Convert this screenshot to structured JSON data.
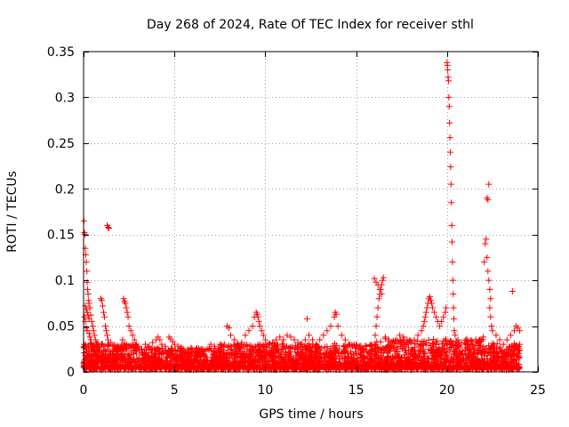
{
  "chart_data": {
    "type": "scatter",
    "title": "Day 268 of 2024, Rate Of TEC Index for receiver sthl",
    "xlabel": "GPS time / hours",
    "ylabel": "ROTI / TECUs",
    "xlim": [
      0,
      25
    ],
    "ylim": [
      0,
      0.35
    ],
    "grid": true,
    "marker": "plus",
    "xticks": [
      {
        "value": 0,
        "label": "0"
      },
      {
        "value": 5,
        "label": "5"
      },
      {
        "value": 10,
        "label": "10"
      },
      {
        "value": 15,
        "label": "15"
      },
      {
        "value": 20,
        "label": "20"
      },
      {
        "value": 25,
        "label": "25"
      }
    ],
    "yticks": [
      {
        "value": 0,
        "label": "0"
      },
      {
        "value": 0.05,
        "label": "0.05"
      },
      {
        "value": 0.1,
        "label": "0.1"
      },
      {
        "value": 0.15,
        "label": "0.15"
      },
      {
        "value": 0.2,
        "label": "0.2"
      },
      {
        "value": 0.25,
        "label": "0.25"
      },
      {
        "value": 0.3,
        "label": "0.3"
      },
      {
        "value": 0.35,
        "label": "0.35"
      }
    ],
    "series": [
      {
        "name": "ROTI",
        "color": "#ff0000",
        "points": [
          [
            0.02,
            0.165
          ],
          [
            0.05,
            0.152
          ],
          [
            0.08,
            0.15
          ],
          [
            0.1,
            0.135
          ],
          [
            0.12,
            0.128
          ],
          [
            0.15,
            0.12
          ],
          [
            0.18,
            0.11
          ],
          [
            0.2,
            0.098
          ],
          [
            0.22,
            0.09
          ],
          [
            0.25,
            0.085
          ],
          [
            0.28,
            0.078
          ],
          [
            0.3,
            0.075
          ],
          [
            0.35,
            0.07
          ],
          [
            0.4,
            0.062
          ],
          [
            0.45,
            0.055
          ],
          [
            0.5,
            0.05
          ],
          [
            0.55,
            0.045
          ],
          [
            0.6,
            0.04
          ],
          [
            0.65,
            0.035
          ],
          [
            0.7,
            0.032
          ],
          [
            0.75,
            0.03
          ],
          [
            0.8,
            0.028
          ],
          [
            0.85,
            0.025
          ],
          [
            0.05,
            0.06
          ],
          [
            0.1,
            0.055
          ],
          [
            0.15,
            0.048
          ],
          [
            0.2,
            0.045
          ],
          [
            0.3,
            0.042
          ],
          [
            0.35,
            0.038
          ],
          [
            0.4,
            0.035
          ],
          [
            0.45,
            0.03
          ],
          [
            0.5,
            0.028
          ],
          [
            0.55,
            0.025
          ],
          [
            0.6,
            0.022
          ],
          [
            0.65,
            0.02
          ],
          [
            0.7,
            0.018
          ],
          [
            0.03,
            0.03
          ],
          [
            0.07,
            0.028
          ],
          [
            0.12,
            0.025
          ],
          [
            0.18,
            0.022
          ],
          [
            0.25,
            0.02
          ],
          [
            0.33,
            0.018
          ],
          [
            0.42,
            0.016
          ],
          [
            0.5,
            0.014
          ],
          [
            0.1,
            0.072
          ],
          [
            0.15,
            0.068
          ],
          [
            0.2,
            0.065
          ],
          [
            0.25,
            0.062
          ],
          [
            0.3,
            0.058
          ],
          [
            0.95,
            0.08
          ],
          [
            1.0,
            0.078
          ],
          [
            1.05,
            0.072
          ],
          [
            1.1,
            0.065
          ],
          [
            1.15,
            0.06
          ],
          [
            1.2,
            0.05
          ],
          [
            1.25,
            0.045
          ],
          [
            1.3,
            0.04
          ],
          [
            1.35,
            0.035
          ],
          [
            1.4,
            0.03
          ],
          [
            1.3,
            0.16
          ],
          [
            1.35,
            0.158
          ],
          [
            1.4,
            0.157
          ],
          [
            1.5,
            0.032
          ],
          [
            1.6,
            0.028
          ],
          [
            1.7,
            0.025
          ],
          [
            1.8,
            0.022
          ],
          [
            1.9,
            0.02
          ],
          [
            2.0,
            0.025
          ],
          [
            2.1,
            0.03
          ],
          [
            2.15,
            0.035
          ],
          [
            2.2,
            0.08
          ],
          [
            2.25,
            0.077
          ],
          [
            2.3,
            0.075
          ],
          [
            2.35,
            0.07
          ],
          [
            2.4,
            0.065
          ],
          [
            2.45,
            0.06
          ],
          [
            2.5,
            0.05
          ],
          [
            2.6,
            0.045
          ],
          [
            2.7,
            0.04
          ],
          [
            2.8,
            0.035
          ],
          [
            2.9,
            0.03
          ],
          [
            3.0,
            0.028
          ],
          [
            3.2,
            0.025
          ],
          [
            3.4,
            0.03
          ],
          [
            3.6,
            0.028
          ],
          [
            3.8,
            0.032
          ],
          [
            4.0,
            0.035
          ],
          [
            4.1,
            0.038
          ],
          [
            4.2,
            0.035
          ],
          [
            4.3,
            0.03
          ],
          [
            4.5,
            0.028
          ],
          [
            4.7,
            0.038
          ],
          [
            4.8,
            0.036
          ],
          [
            4.9,
            0.033
          ],
          [
            5.0,
            0.03
          ],
          [
            5.2,
            0.028
          ],
          [
            5.4,
            0.025
          ],
          [
            5.6,
            0.022
          ],
          [
            5.8,
            0.02
          ],
          [
            6.0,
            0.022
          ],
          [
            6.2,
            0.025
          ],
          [
            6.4,
            0.022
          ],
          [
            6.6,
            0.02
          ],
          [
            6.8,
            0.025
          ],
          [
            7.0,
            0.03
          ],
          [
            7.2,
            0.028
          ],
          [
            7.4,
            0.025
          ],
          [
            7.5,
            0.03
          ],
          [
            7.7,
            0.028
          ],
          [
            7.9,
            0.05
          ],
          [
            8.0,
            0.048
          ],
          [
            8.1,
            0.04
          ],
          [
            8.3,
            0.035
          ],
          [
            8.5,
            0.03
          ],
          [
            8.7,
            0.032
          ],
          [
            8.9,
            0.04
          ],
          [
            9.1,
            0.045
          ],
          [
            9.3,
            0.05
          ],
          [
            9.4,
            0.06
          ],
          [
            9.5,
            0.065
          ],
          [
            9.55,
            0.063
          ],
          [
            9.6,
            0.06
          ],
          [
            9.65,
            0.055
          ],
          [
            9.7,
            0.05
          ],
          [
            9.8,
            0.045
          ],
          [
            9.9,
            0.04
          ],
          [
            10.0,
            0.035
          ],
          [
            10.2,
            0.03
          ],
          [
            10.4,
            0.032
          ],
          [
            10.6,
            0.035
          ],
          [
            10.8,
            0.038
          ],
          [
            11.0,
            0.035
          ],
          [
            11.2,
            0.04
          ],
          [
            11.4,
            0.038
          ],
          [
            11.6,
            0.035
          ],
          [
            11.8,
            0.032
          ],
          [
            12.0,
            0.03
          ],
          [
            12.2,
            0.035
          ],
          [
            12.3,
            0.058
          ],
          [
            12.4,
            0.04
          ],
          [
            12.6,
            0.035
          ],
          [
            12.8,
            0.03
          ],
          [
            13.0,
            0.035
          ],
          [
            13.2,
            0.04
          ],
          [
            13.4,
            0.045
          ],
          [
            13.6,
            0.05
          ],
          [
            13.8,
            0.06
          ],
          [
            13.85,
            0.065
          ],
          [
            13.9,
            0.063
          ],
          [
            14.0,
            0.05
          ],
          [
            14.2,
            0.04
          ],
          [
            14.4,
            0.035
          ],
          [
            14.6,
            0.03
          ],
          [
            14.8,
            0.028
          ],
          [
            15.0,
            0.03
          ],
          [
            15.2,
            0.028
          ],
          [
            15.4,
            0.025
          ],
          [
            15.6,
            0.022
          ],
          [
            15.8,
            0.02
          ],
          [
            16.0,
            0.03
          ],
          [
            16.05,
            0.04
          ],
          [
            16.1,
            0.05
          ],
          [
            16.15,
            0.06
          ],
          [
            16.2,
            0.07
          ],
          [
            16.25,
            0.08
          ],
          [
            16.3,
            0.085
          ],
          [
            16.35,
            0.09
          ],
          [
            16.4,
            0.095
          ],
          [
            16.45,
            0.1
          ],
          [
            16.5,
            0.103
          ],
          [
            16.0,
            0.102
          ],
          [
            16.1,
            0.098
          ],
          [
            16.2,
            0.095
          ],
          [
            16.3,
            0.09
          ],
          [
            16.4,
            0.085
          ],
          [
            16.6,
            0.038
          ],
          [
            16.8,
            0.035
          ],
          [
            17.0,
            0.032
          ],
          [
            17.2,
            0.035
          ],
          [
            17.4,
            0.04
          ],
          [
            17.6,
            0.038
          ],
          [
            17.8,
            0.035
          ],
          [
            18.0,
            0.032
          ],
          [
            18.2,
            0.035
          ],
          [
            18.4,
            0.04
          ],
          [
            18.6,
            0.045
          ],
          [
            18.7,
            0.05
          ],
          [
            18.75,
            0.055
          ],
          [
            18.8,
            0.06
          ],
          [
            18.85,
            0.065
          ],
          [
            18.9,
            0.07
          ],
          [
            18.95,
            0.075
          ],
          [
            19.0,
            0.08
          ],
          [
            19.05,
            0.082
          ],
          [
            19.1,
            0.078
          ],
          [
            19.15,
            0.075
          ],
          [
            19.2,
            0.07
          ],
          [
            19.3,
            0.065
          ],
          [
            19.4,
            0.06
          ],
          [
            19.5,
            0.055
          ],
          [
            19.6,
            0.05
          ],
          [
            19.7,
            0.055
          ],
          [
            19.8,
            0.06
          ],
          [
            19.9,
            0.065
          ],
          [
            19.95,
            0.07
          ],
          [
            20.0,
            0.338
          ],
          [
            20.02,
            0.335
          ],
          [
            20.04,
            0.33
          ],
          [
            20.06,
            0.322
          ],
          [
            20.08,
            0.318
          ],
          [
            20.1,
            0.3
          ],
          [
            20.12,
            0.29
          ],
          [
            20.14,
            0.272
          ],
          [
            20.16,
            0.256
          ],
          [
            20.18,
            0.24
          ],
          [
            20.2,
            0.224
          ],
          [
            20.22,
            0.205
          ],
          [
            20.24,
            0.185
          ],
          [
            20.26,
            0.16
          ],
          [
            20.28,
            0.142
          ],
          [
            20.3,
            0.12
          ],
          [
            20.32,
            0.1
          ],
          [
            20.34,
            0.085
          ],
          [
            20.36,
            0.07
          ],
          [
            20.38,
            0.058
          ],
          [
            20.4,
            0.045
          ],
          [
            20.45,
            0.04
          ],
          [
            20.6,
            0.035
          ],
          [
            20.8,
            0.032
          ],
          [
            21.0,
            0.03
          ],
          [
            21.2,
            0.028
          ],
          [
            21.4,
            0.03
          ],
          [
            21.6,
            0.032
          ],
          [
            21.8,
            0.035
          ],
          [
            22.0,
            0.038
          ],
          [
            22.05,
            0.12
          ],
          [
            22.1,
            0.14
          ],
          [
            22.15,
            0.145
          ],
          [
            22.2,
            0.125
          ],
          [
            22.25,
            0.11
          ],
          [
            22.3,
            0.1
          ],
          [
            22.35,
            0.09
          ],
          [
            22.4,
            0.08
          ],
          [
            22.2,
            0.19
          ],
          [
            22.25,
            0.188
          ],
          [
            22.3,
            0.205
          ],
          [
            22.35,
            0.07
          ],
          [
            22.4,
            0.06
          ],
          [
            22.45,
            0.05
          ],
          [
            22.5,
            0.045
          ],
          [
            22.7,
            0.04
          ],
          [
            22.9,
            0.035
          ],
          [
            23.1,
            0.03
          ],
          [
            23.3,
            0.035
          ],
          [
            23.5,
            0.04
          ],
          [
            23.6,
            0.088
          ],
          [
            23.7,
            0.045
          ],
          [
            23.8,
            0.05
          ],
          [
            23.9,
            0.048
          ],
          [
            24.0,
            0.045
          ],
          [
            24.0,
            0.03
          ],
          [
            23.95,
            0.02
          ]
        ],
        "bands": [
          {
            "start": 0.0,
            "end": 3.0,
            "max": 0.03
          },
          {
            "start": 3.0,
            "end": 7.5,
            "max": 0.025
          },
          {
            "start": 7.5,
            "end": 12.0,
            "max": 0.03
          },
          {
            "start": 12.0,
            "end": 16.0,
            "max": 0.03
          },
          {
            "start": 16.0,
            "end": 19.5,
            "max": 0.035
          },
          {
            "start": 19.5,
            "end": 22.0,
            "max": 0.035
          },
          {
            "start": 22.0,
            "end": 24.0,
            "max": 0.03
          }
        ]
      }
    ]
  }
}
